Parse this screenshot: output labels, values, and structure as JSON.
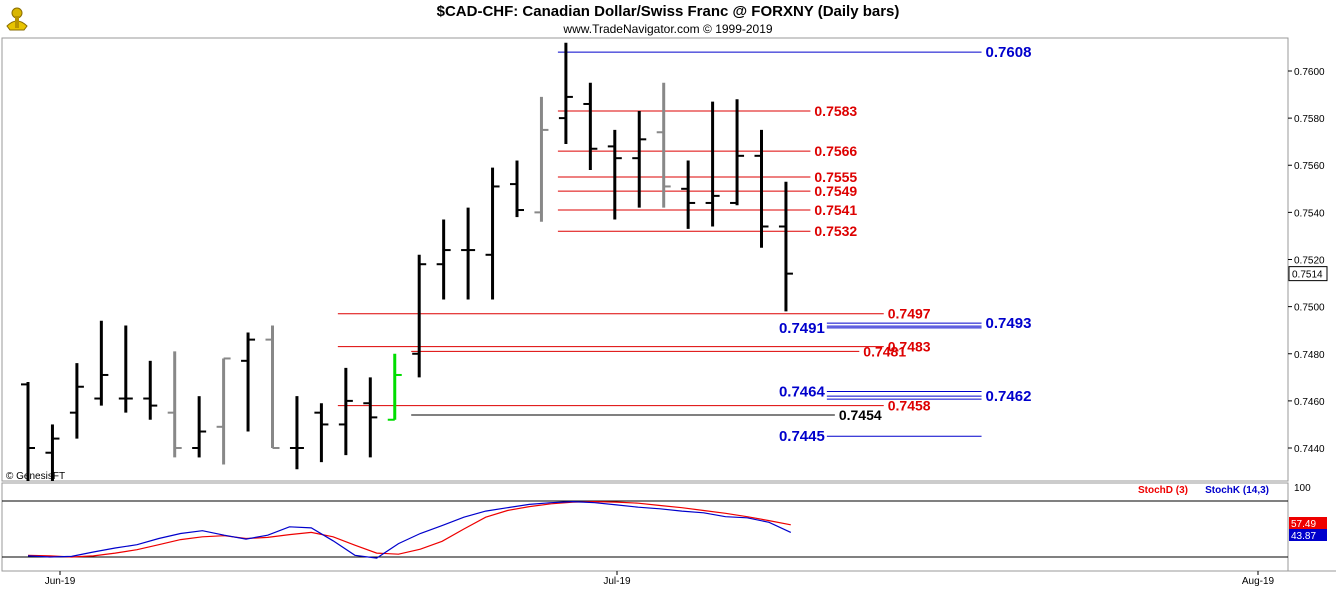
{
  "chart_data": [
    {
      "type": "ohlc",
      "title": "$CAD-CHF:  Canadian Dollar/Swiss Franc @ FORXNY  (Daily bars)",
      "subtitle": "www.TradeNavigator.com © 1999-2019",
      "watermark": "© GenesisFT",
      "ylim": [
        0.7426,
        0.7614
      ],
      "y_ticks": [
        "0.7600",
        "0.7580",
        "0.7560",
        "0.7540",
        "0.7520",
        "0.7500",
        "0.7480",
        "0.7460",
        "0.7440"
      ],
      "x_ticks": [
        "Jun-19",
        "Jul-19",
        "Aug-19"
      ],
      "last_price": "0.7514",
      "bars": [
        {
          "o": 0.7467,
          "h": 0.7468,
          "l": 0.742,
          "c": 0.744,
          "color": "#000000"
        },
        {
          "o": 0.7438,
          "h": 0.745,
          "l": 0.7425,
          "c": 0.7444,
          "color": "#000000"
        },
        {
          "o": 0.7455,
          "h": 0.7476,
          "l": 0.7444,
          "c": 0.7466,
          "color": "#000000"
        },
        {
          "o": 0.7461,
          "h": 0.7494,
          "l": 0.7458,
          "c": 0.7471,
          "color": "#000000"
        },
        {
          "o": 0.7461,
          "h": 0.7492,
          "l": 0.7455,
          "c": 0.7461,
          "color": "#000000"
        },
        {
          "o": 0.7461,
          "h": 0.7477,
          "l": 0.7452,
          "c": 0.7458,
          "color": "#000000"
        },
        {
          "o": 0.7455,
          "h": 0.7481,
          "l": 0.7436,
          "c": 0.744,
          "color": "#888888"
        },
        {
          "o": 0.744,
          "h": 0.7462,
          "l": 0.7436,
          "c": 0.7447,
          "color": "#000000"
        },
        {
          "o": 0.7449,
          "h": 0.7478,
          "l": 0.7433,
          "c": 0.7478,
          "color": "#888888"
        },
        {
          "o": 0.7477,
          "h": 0.7489,
          "l": 0.7447,
          "c": 0.7486,
          "color": "#000000"
        },
        {
          "o": 0.7486,
          "h": 0.7492,
          "l": 0.744,
          "c": 0.744,
          "color": "#888888"
        },
        {
          "o": 0.744,
          "h": 0.7462,
          "l": 0.7431,
          "c": 0.744,
          "color": "#000000"
        },
        {
          "o": 0.7455,
          "h": 0.7459,
          "l": 0.7434,
          "c": 0.745,
          "color": "#000000"
        },
        {
          "o": 0.745,
          "h": 0.7474,
          "l": 0.7437,
          "c": 0.746,
          "color": "#000000"
        },
        {
          "o": 0.7459,
          "h": 0.747,
          "l": 0.7436,
          "c": 0.7453,
          "color": "#000000"
        },
        {
          "o": 0.7452,
          "h": 0.748,
          "l": 0.7452,
          "c": 0.7471,
          "color": "#00dd00"
        },
        {
          "o": 0.748,
          "h": 0.7522,
          "l": 0.747,
          "c": 0.7518,
          "color": "#000000"
        },
        {
          "o": 0.7518,
          "h": 0.7537,
          "l": 0.7503,
          "c": 0.7524,
          "color": "#000000"
        },
        {
          "o": 0.7524,
          "h": 0.7542,
          "l": 0.7503,
          "c": 0.7524,
          "color": "#000000"
        },
        {
          "o": 0.7522,
          "h": 0.7559,
          "l": 0.7503,
          "c": 0.7551,
          "color": "#000000"
        },
        {
          "o": 0.7552,
          "h": 0.7562,
          "l": 0.7538,
          "c": 0.7541,
          "color": "#000000"
        },
        {
          "o": 0.754,
          "h": 0.7589,
          "l": 0.7536,
          "c": 0.7575,
          "color": "#888888"
        },
        {
          "o": 0.758,
          "h": 0.7612,
          "l": 0.7569,
          "c": 0.7589,
          "color": "#000000"
        },
        {
          "o": 0.7586,
          "h": 0.7595,
          "l": 0.7558,
          "c": 0.7567,
          "color": "#000000"
        },
        {
          "o": 0.7568,
          "h": 0.7575,
          "l": 0.7537,
          "c": 0.7563,
          "color": "#000000"
        },
        {
          "o": 0.7563,
          "h": 0.7583,
          "l": 0.7542,
          "c": 0.7571,
          "color": "#000000"
        },
        {
          "o": 0.7574,
          "h": 0.7595,
          "l": 0.7542,
          "c": 0.7551,
          "color": "#888888"
        },
        {
          "o": 0.755,
          "h": 0.7562,
          "l": 0.7533,
          "c": 0.7544,
          "color": "#000000"
        },
        {
          "o": 0.7544,
          "h": 0.7587,
          "l": 0.7534,
          "c": 0.7547,
          "color": "#000000"
        },
        {
          "o": 0.7544,
          "h": 0.7588,
          "l": 0.7543,
          "c": 0.7564,
          "color": "#000000"
        },
        {
          "o": 0.7564,
          "h": 0.7575,
          "l": 0.7525,
          "c": 0.7534,
          "color": "#000000"
        },
        {
          "o": 0.7534,
          "h": 0.7553,
          "l": 0.7498,
          "c": 0.7514,
          "color": "#000000"
        }
      ],
      "levels": [
        {
          "value": 0.7608,
          "label": "0.7608",
          "color": "#0000cc",
          "from": 22,
          "to": 39,
          "side": "right"
        },
        {
          "value": 0.7583,
          "label": "0.7583",
          "color": "#dd0000",
          "from": 22,
          "to": 32,
          "side": "right"
        },
        {
          "value": 0.7566,
          "label": "0.7566",
          "color": "#dd0000",
          "from": 22,
          "to": 32,
          "side": "right"
        },
        {
          "value": 0.7555,
          "label": "0.7555",
          "color": "#dd0000",
          "from": 22,
          "to": 32,
          "side": "right"
        },
        {
          "value": 0.7549,
          "label": "0.7549",
          "color": "#dd0000",
          "from": 22,
          "to": 32,
          "side": "right"
        },
        {
          "value": 0.7541,
          "label": "0.7541",
          "color": "#dd0000",
          "from": 22,
          "to": 32,
          "side": "right"
        },
        {
          "value": 0.7532,
          "label": "0.7532",
          "color": "#dd0000",
          "from": 22,
          "to": 32,
          "side": "right"
        },
        {
          "value": 0.7497,
          "label": "0.7497",
          "color": "#dd0000",
          "from": 13,
          "to": 35,
          "side": "right"
        },
        {
          "value": 0.7483,
          "label": "0.7483",
          "color": "#dd0000",
          "from": 13,
          "to": 35,
          "side": "right"
        },
        {
          "value": 0.7481,
          "label": "0.7481",
          "color": "#dd0000",
          "from": 16,
          "to": 34,
          "side": "right"
        },
        {
          "value": 0.7458,
          "label": "0.7458",
          "color": "#dd0000",
          "from": 13,
          "to": 35,
          "side": "right"
        },
        {
          "value": 0.7454,
          "label": "0.7454",
          "color": "#000000",
          "from": 16,
          "to": 33,
          "side": "right"
        },
        {
          "value": 0.7493,
          "label": "0.7493",
          "color": "#0000cc",
          "from": 33,
          "to": 39,
          "side": "right",
          "double": true
        },
        {
          "value": 0.7462,
          "label": "0.7462",
          "color": "#0000cc",
          "from": 33,
          "to": 39,
          "side": "right",
          "double": true
        },
        {
          "value": 0.7491,
          "label": "0.7491",
          "color": "#0000cc",
          "from": 33,
          "to": 39,
          "side": "left"
        },
        {
          "value": 0.7464,
          "label": "0.7464",
          "color": "#0000cc",
          "from": 33,
          "to": 39,
          "side": "left"
        },
        {
          "value": 0.7445,
          "label": "0.7445",
          "color": "#0000cc",
          "from": 33,
          "to": 39,
          "side": "left"
        }
      ]
    },
    {
      "type": "line",
      "legend": [
        "StochD (3)",
        "StochK (14,3)"
      ],
      "ylim": [
        0,
        100
      ],
      "y_ticks": [
        "100"
      ],
      "last_values": {
        "stochD": "57.49",
        "stochK": "43.87"
      },
      "series": [
        {
          "name": "StochD (3)",
          "color": "#ee0000",
          "values": [
            3,
            2,
            0,
            2,
            7,
            13,
            22,
            31,
            36,
            38,
            33,
            35,
            40,
            44,
            36,
            21,
            7,
            5,
            14,
            28,
            50,
            71,
            83,
            90,
            95,
            98,
            99,
            98,
            96,
            92,
            88,
            83,
            78,
            72,
            65,
            57.49
          ]
        },
        {
          "name": "StochK (14,3)",
          "color": "#0000cc",
          "values": [
            2,
            0,
            1,
            9,
            16,
            22,
            33,
            42,
            47,
            39,
            32,
            39,
            54,
            52,
            29,
            3,
            -2,
            24,
            42,
            56,
            71,
            82,
            88,
            94,
            97,
            99,
            97,
            93,
            89,
            86,
            82,
            79,
            72,
            70,
            62,
            43.87
          ]
        }
      ]
    }
  ]
}
